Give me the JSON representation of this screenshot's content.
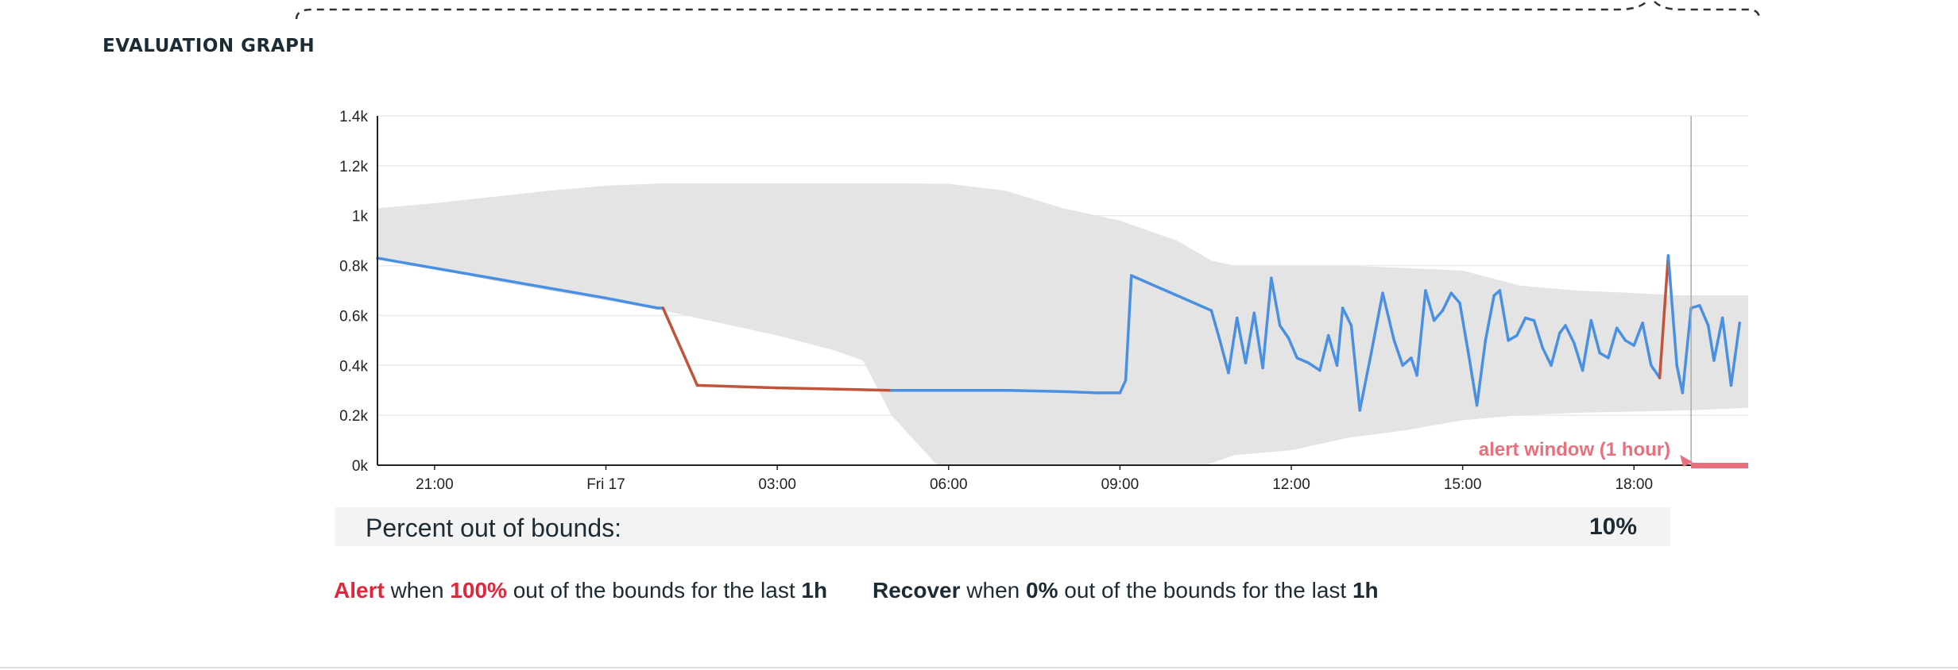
{
  "section": {
    "title": "EVALUATION GRAPH"
  },
  "percent_out_of_bounds": {
    "label": "Percent out of bounds:",
    "value": "10%"
  },
  "alert_rule": {
    "word": "Alert",
    "when": "when",
    "threshold": "100%",
    "rest": "out of the bounds for the last",
    "window": "1h"
  },
  "recover_rule": {
    "word": "Recover",
    "when": "when",
    "threshold": "0%",
    "rest": "out of the bounds for the last",
    "window": "1h"
  },
  "colors": {
    "metric_line": "#4a90e2",
    "out_of_bounds_line": "#c0533a",
    "bounds_band": "#e4e4e4",
    "alert_window": "#e8707c",
    "alert_text": "#e0263d",
    "axis": "#222222",
    "grid": "#eaeaea"
  },
  "chart_data": {
    "type": "line",
    "x_unit": "hours (time of day, starting Thu 20:00)",
    "y_ticks": [
      "0k",
      "0.2k",
      "0.4k",
      "0.6k",
      "0.8k",
      "1k",
      "1.2k",
      "1.4k"
    ],
    "ylim": [
      0,
      1400
    ],
    "xlim": [
      20,
      44
    ],
    "x_ticks": [
      {
        "x": 21,
        "label": "21:00"
      },
      {
        "x": 24,
        "label": "Fri 17"
      },
      {
        "x": 27,
        "label": "03:00"
      },
      {
        "x": 30,
        "label": "06:00"
      },
      {
        "x": 33,
        "label": "09:00"
      },
      {
        "x": 36,
        "label": "12:00"
      },
      {
        "x": 39,
        "label": "15:00"
      },
      {
        "x": 42,
        "label": "18:00"
      }
    ],
    "grid": true,
    "bounds_upper": [
      [
        20,
        1030
      ],
      [
        21,
        1050
      ],
      [
        22,
        1075
      ],
      [
        23,
        1100
      ],
      [
        24,
        1120
      ],
      [
        25,
        1130
      ],
      [
        26,
        1130
      ],
      [
        27,
        1130
      ],
      [
        28,
        1130
      ],
      [
        29,
        1130
      ],
      [
        30,
        1128
      ],
      [
        31,
        1100
      ],
      [
        32,
        1030
      ],
      [
        33,
        980
      ],
      [
        34,
        900
      ],
      [
        34.6,
        820
      ],
      [
        35,
        800
      ],
      [
        35.8,
        800
      ],
      [
        36.5,
        800
      ],
      [
        37,
        800
      ],
      [
        38,
        790
      ],
      [
        39,
        780
      ],
      [
        40,
        720
      ],
      [
        41,
        700
      ],
      [
        42,
        690
      ],
      [
        42.8,
        680
      ],
      [
        43.5,
        680
      ],
      [
        44,
        680
      ]
    ],
    "bounds_lower": [
      [
        44,
        230
      ],
      [
        43,
        220
      ],
      [
        42,
        215
      ],
      [
        41,
        210
      ],
      [
        40,
        200
      ],
      [
        39,
        180
      ],
      [
        38,
        140
      ],
      [
        37,
        110
      ],
      [
        36,
        60
      ],
      [
        35,
        40
      ],
      [
        34.5,
        0
      ],
      [
        33,
        0
      ],
      [
        31,
        0
      ],
      [
        30,
        0
      ],
      [
        29.8,
        0
      ],
      [
        29.4,
        100
      ],
      [
        29,
        200
      ],
      [
        28.5,
        420
      ],
      [
        28,
        460
      ],
      [
        27.5,
        490
      ],
      [
        27,
        520
      ],
      [
        26,
        570
      ],
      [
        25,
        620
      ],
      [
        24,
        660
      ],
      [
        23,
        700
      ],
      [
        22,
        740
      ],
      [
        21,
        790
      ],
      [
        20,
        830
      ]
    ],
    "series": [
      {
        "values": [
          [
            20,
            830
          ],
          [
            21,
            790
          ],
          [
            22,
            750
          ],
          [
            23,
            710
          ],
          [
            24,
            670
          ],
          [
            24.9,
            630
          ],
          [
            25,
            630
          ],
          [
            25.6,
            320
          ],
          [
            27,
            310
          ],
          [
            28,
            305
          ],
          [
            29,
            300
          ],
          [
            30,
            300
          ],
          [
            31,
            300
          ],
          [
            32,
            295
          ],
          [
            32.6,
            290
          ],
          [
            33,
            290
          ],
          [
            33.1,
            340
          ],
          [
            33.2,
            760
          ],
          [
            33.6,
            720
          ],
          [
            34,
            680
          ],
          [
            34.6,
            620
          ],
          [
            34.75,
            500
          ],
          [
            34.9,
            370
          ],
          [
            35.05,
            590
          ],
          [
            35.2,
            410
          ],
          [
            35.35,
            610
          ],
          [
            35.5,
            390
          ],
          [
            35.65,
            750
          ],
          [
            35.8,
            560
          ],
          [
            35.95,
            510
          ],
          [
            36.1,
            430
          ],
          [
            36.3,
            410
          ],
          [
            36.5,
            380
          ],
          [
            36.65,
            520
          ],
          [
            36.8,
            400
          ],
          [
            36.9,
            630
          ],
          [
            37.05,
            560
          ],
          [
            37.2,
            220
          ],
          [
            37.4,
            450
          ],
          [
            37.6,
            690
          ],
          [
            37.8,
            500
          ],
          [
            37.95,
            400
          ],
          [
            38.1,
            430
          ],
          [
            38.2,
            360
          ],
          [
            38.35,
            700
          ],
          [
            38.5,
            580
          ],
          [
            38.65,
            620
          ],
          [
            38.8,
            690
          ],
          [
            38.95,
            650
          ],
          [
            39.1,
            450
          ],
          [
            39.25,
            240
          ],
          [
            39.4,
            500
          ],
          [
            39.55,
            680
          ],
          [
            39.65,
            700
          ],
          [
            39.8,
            500
          ],
          [
            39.95,
            520
          ],
          [
            40.1,
            590
          ],
          [
            40.25,
            580
          ],
          [
            40.4,
            470
          ],
          [
            40.55,
            400
          ],
          [
            40.7,
            530
          ],
          [
            40.8,
            560
          ],
          [
            40.95,
            490
          ],
          [
            41.1,
            380
          ],
          [
            41.25,
            580
          ],
          [
            41.4,
            450
          ],
          [
            41.55,
            430
          ],
          [
            41.7,
            550
          ],
          [
            41.85,
            500
          ],
          [
            42.0,
            480
          ],
          [
            42.15,
            570
          ],
          [
            42.3,
            400
          ],
          [
            42.45,
            350
          ],
          [
            42.6,
            840
          ],
          [
            42.75,
            400
          ],
          [
            42.85,
            290
          ],
          [
            43.0,
            630
          ],
          [
            43.15,
            640
          ],
          [
            43.3,
            560
          ],
          [
            43.4,
            420
          ],
          [
            43.55,
            590
          ],
          [
            43.7,
            320
          ],
          [
            43.85,
            570
          ]
        ]
      }
    ],
    "alert_window": {
      "label": "alert window (1 hour)"
    }
  }
}
